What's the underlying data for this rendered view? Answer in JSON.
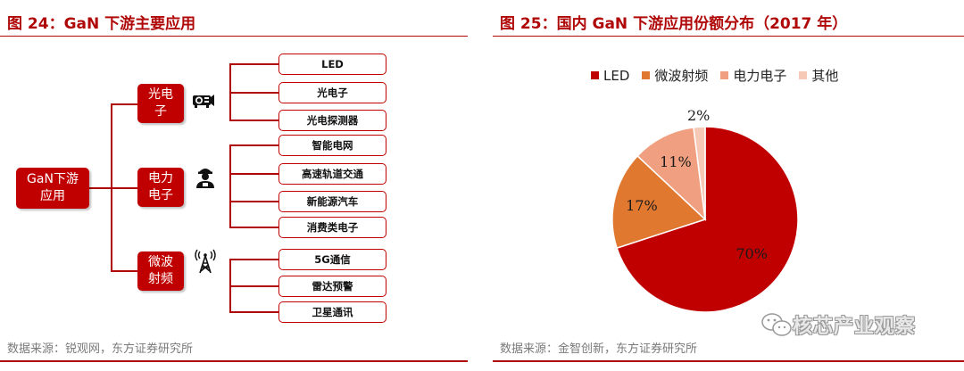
{
  "left": {
    "title": "图 24：GaN 下游主要应用",
    "root": "GaN下游应用",
    "categories": [
      {
        "label": "光电子",
        "icon": "projector-icon",
        "items": [
          "LED",
          "光电子",
          "光电探测器"
        ]
      },
      {
        "label": "电力电子",
        "icon": "worker-icon",
        "items": [
          "智能电网",
          "高速轨道交通",
          "新能源汽车",
          "消费类电子"
        ]
      },
      {
        "label": "微波射频",
        "icon": "antenna-tower-icon",
        "items": [
          "5G通信",
          "雷达预警",
          "卫星通讯"
        ]
      }
    ],
    "source": "数据来源：锐观网，东方证券研究所"
  },
  "right": {
    "title": "图 25：国内 GaN 下游应用份额分布（2017 年）",
    "source": "数据来源：金智创新，东方证券研究所",
    "watermark": "核芯产业观察",
    "watermark_icon": "wechat-icon"
  },
  "chart_data": {
    "type": "pie",
    "title": "图 25：国内 GaN 下游应用份额分布（2017 年）",
    "legend_position": "top",
    "series": [
      {
        "name": "LED",
        "value": 70,
        "label": "70%",
        "color": "#c00000"
      },
      {
        "name": "微波射频",
        "value": 17,
        "label": "17%",
        "color": "#e07830"
      },
      {
        "name": "电力电子",
        "value": 11,
        "label": "11%",
        "color": "#f0a080"
      },
      {
        "name": "其他",
        "value": 2,
        "label": "2%",
        "color": "#f6c8b6"
      }
    ]
  }
}
